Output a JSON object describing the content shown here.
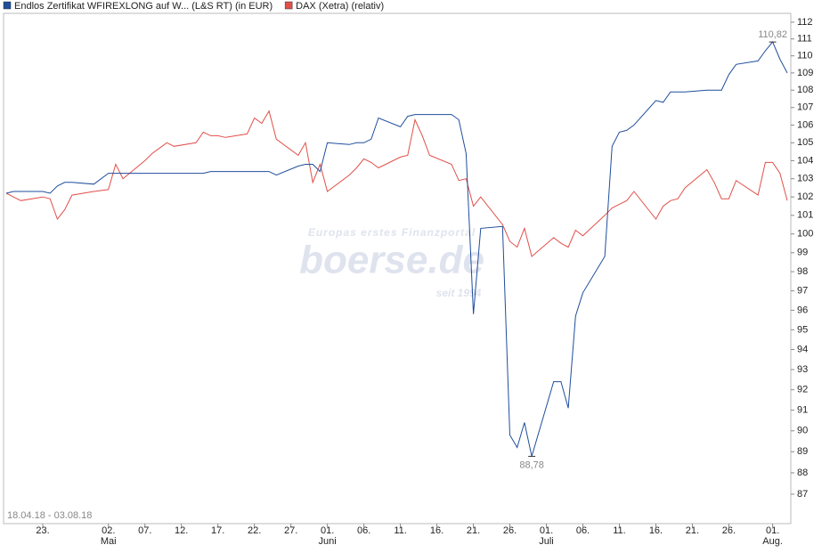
{
  "chart_data": {
    "type": "line",
    "legend": "top-left",
    "log_scale": true,
    "grid": false,
    "x": [
      "2018-04-18",
      "2018-04-19",
      "2018-04-20",
      "2018-04-23",
      "2018-04-24",
      "2018-04-25",
      "2018-04-26",
      "2018-04-27",
      "2018-04-30",
      "2018-05-02",
      "2018-05-03",
      "2018-05-04",
      "2018-05-07",
      "2018-05-08",
      "2018-05-09",
      "2018-05-10",
      "2018-05-11",
      "2018-05-14",
      "2018-05-15",
      "2018-05-16",
      "2018-05-17",
      "2018-05-18",
      "2018-05-21",
      "2018-05-22",
      "2018-05-23",
      "2018-05-24",
      "2018-05-25",
      "2018-05-28",
      "2018-05-29",
      "2018-05-30",
      "2018-05-31",
      "2018-06-01",
      "2018-06-04",
      "2018-06-05",
      "2018-06-06",
      "2018-06-07",
      "2018-06-08",
      "2018-06-11",
      "2018-06-12",
      "2018-06-13",
      "2018-06-14",
      "2018-06-15",
      "2018-06-18",
      "2018-06-19",
      "2018-06-20",
      "2018-06-21",
      "2018-06-22",
      "2018-06-25",
      "2018-06-26",
      "2018-06-27",
      "2018-06-28",
      "2018-06-29",
      "2018-07-02",
      "2018-07-03",
      "2018-07-04",
      "2018-07-05",
      "2018-07-06",
      "2018-07-09",
      "2018-07-10",
      "2018-07-11",
      "2018-07-12",
      "2018-07-13",
      "2018-07-16",
      "2018-07-17",
      "2018-07-18",
      "2018-07-19",
      "2018-07-20",
      "2018-07-23",
      "2018-07-24",
      "2018-07-25",
      "2018-07-26",
      "2018-07-27",
      "2018-07-30",
      "2018-07-31",
      "2018-08-01",
      "2018-08-02",
      "2018-08-03"
    ],
    "series": [
      {
        "name": "Endlos Zertifikat WFIREXLONG auf W... (L&S RT) (in EUR)",
        "color": "#1f4e9c",
        "values": [
          102.2,
          102.3,
          102.3,
          102.3,
          102.2,
          102.6,
          102.8,
          102.8,
          102.7,
          103.3,
          103.3,
          103.3,
          103.3,
          103.3,
          103.3,
          103.3,
          103.3,
          103.3,
          103.3,
          103.4,
          103.4,
          103.4,
          103.4,
          103.4,
          103.4,
          103.4,
          103.2,
          103.7,
          103.8,
          103.8,
          103.4,
          105.0,
          104.9,
          105.0,
          105.0,
          105.2,
          106.4,
          105.9,
          106.5,
          106.6,
          106.6,
          106.6,
          106.6,
          106.3,
          104.4,
          95.8,
          100.3,
          100.4,
          89.8,
          89.2,
          90.4,
          88.78,
          92.4,
          92.4,
          91.1,
          95.7,
          96.9,
          98.8,
          104.8,
          105.6,
          105.7,
          106.0,
          107.4,
          107.3,
          107.9,
          107.9,
          107.9,
          108.0,
          108.0,
          108.0,
          108.9,
          109.5,
          109.7,
          110.3,
          110.82,
          109.8,
          109.0
        ]
      },
      {
        "name": "DAX (Xetra) (relativ)",
        "color": "#e0504a",
        "values": [
          102.2,
          102.0,
          101.8,
          102.0,
          101.9,
          100.8,
          101.3,
          102.1,
          102.3,
          102.4,
          103.8,
          103.0,
          104.0,
          104.4,
          104.7,
          105.0,
          104.8,
          105.0,
          105.6,
          105.4,
          105.4,
          105.3,
          105.5,
          106.4,
          106.1,
          106.8,
          105.2,
          104.3,
          105.0,
          102.8,
          103.8,
          102.3,
          103.2,
          103.6,
          104.1,
          103.9,
          103.6,
          104.2,
          104.3,
          106.3,
          105.4,
          104.3,
          103.8,
          102.9,
          103.0,
          101.5,
          102.0,
          100.5,
          99.6,
          99.3,
          100.3,
          98.8,
          99.8,
          99.5,
          99.3,
          100.2,
          99.9,
          101.0,
          101.4,
          101.6,
          101.8,
          102.3,
          100.8,
          101.5,
          101.8,
          101.9,
          102.5,
          103.5,
          102.8,
          101.9,
          101.9,
          102.9,
          102.1,
          103.9,
          103.9,
          103.3,
          101.8
        ]
      }
    ],
    "xlim": [
      "2018-04-18",
      "2018-08-03"
    ],
    "xticks": [
      {
        "value": "2018-04-23",
        "label": "23."
      },
      {
        "value": "2018-05-02",
        "label": "02."
      },
      {
        "value": "2018-05-07",
        "label": "07."
      },
      {
        "value": "2018-05-12",
        "label": "12."
      },
      {
        "value": "2018-05-17",
        "label": "17."
      },
      {
        "value": "2018-05-22",
        "label": "22."
      },
      {
        "value": "2018-05-27",
        "label": "27."
      },
      {
        "value": "2018-06-01",
        "label": "01."
      },
      {
        "value": "2018-06-06",
        "label": "06."
      },
      {
        "value": "2018-06-11",
        "label": "11."
      },
      {
        "value": "2018-06-16",
        "label": "16."
      },
      {
        "value": "2018-06-21",
        "label": "21."
      },
      {
        "value": "2018-06-26",
        "label": "26."
      },
      {
        "value": "2018-07-01",
        "label": "01."
      },
      {
        "value": "2018-07-06",
        "label": "06."
      },
      {
        "value": "2018-07-11",
        "label": "11."
      },
      {
        "value": "2018-07-16",
        "label": "16."
      },
      {
        "value": "2018-07-21",
        "label": "21."
      },
      {
        "value": "2018-07-26",
        "label": "26."
      },
      {
        "value": "2018-08-01",
        "label": "01."
      }
    ],
    "month_labels": [
      {
        "value": "2018-05-02",
        "label": "Mai"
      },
      {
        "value": "2018-06-01",
        "label": "Juni"
      },
      {
        "value": "2018-07-01",
        "label": "Juli"
      },
      {
        "value": "2018-08-01",
        "label": "Aug."
      }
    ],
    "ylim": [
      85.64,
      112.53
    ],
    "yticks": [
      87,
      88,
      89,
      90,
      91,
      92,
      93,
      94,
      95,
      96,
      97,
      98,
      99,
      100,
      101,
      102,
      103,
      104,
      105,
      106,
      107,
      108,
      109,
      110,
      111,
      112
    ],
    "annotations": [
      {
        "x": "2018-08-01",
        "value": 110.82,
        "label": "110,82",
        "position": "above"
      },
      {
        "x": "2018-06-29",
        "value": 88.78,
        "label": "88,78",
        "position": "below"
      }
    ],
    "date_range": "18.04.18 - 03.08.18",
    "watermark": {
      "tagline": "Europas erstes Finanzportal",
      "brand": "boerse.de",
      "since": "seit 1994"
    }
  }
}
